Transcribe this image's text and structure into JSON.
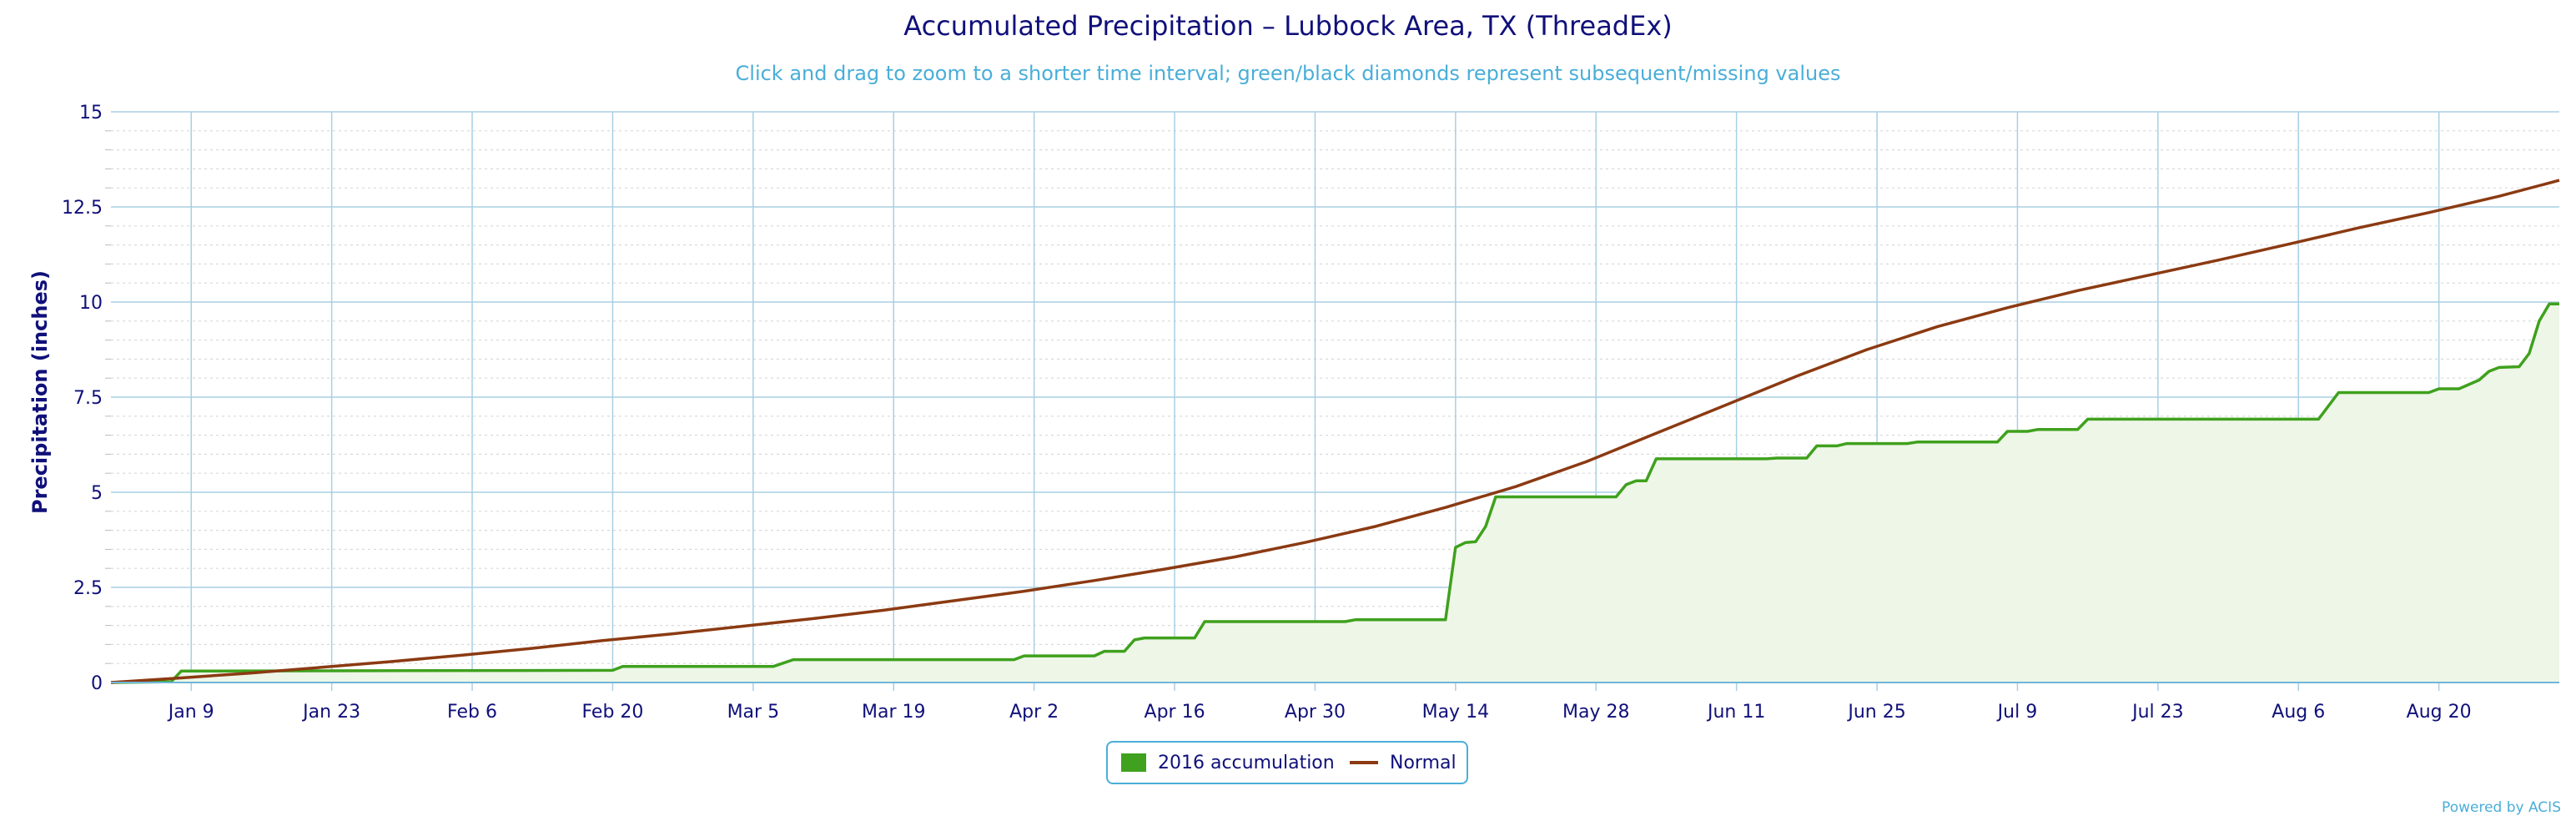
{
  "chart_data": {
    "type": "line",
    "title": "Accumulated Precipitation – Lubbock Area, TX (ThreadEx)",
    "subtitle": "Click and drag to zoom to a shorter time interval; green/black diamonds represent subsequent/missing values",
    "xlabel": "",
    "ylabel": "Precipitation (inches)",
    "xlim": [
      "2016-01-01",
      "2016-09-01"
    ],
    "ylim": [
      0,
      15
    ],
    "x_ticks": [
      {
        "date": "2016-01-09",
        "label": "Jan 9"
      },
      {
        "date": "2016-01-23",
        "label": "Jan 23"
      },
      {
        "date": "2016-02-06",
        "label": "Feb 6"
      },
      {
        "date": "2016-02-20",
        "label": "Feb 20"
      },
      {
        "date": "2016-03-05",
        "label": "Mar 5"
      },
      {
        "date": "2016-03-19",
        "label": "Mar 19"
      },
      {
        "date": "2016-04-02",
        "label": "Apr 2"
      },
      {
        "date": "2016-04-16",
        "label": "Apr 16"
      },
      {
        "date": "2016-04-30",
        "label": "Apr 30"
      },
      {
        "date": "2016-05-14",
        "label": "May 14"
      },
      {
        "date": "2016-05-28",
        "label": "May 28"
      },
      {
        "date": "2016-06-11",
        "label": "Jun 11"
      },
      {
        "date": "2016-06-25",
        "label": "Jun 25"
      },
      {
        "date": "2016-07-09",
        "label": "Jul 9"
      },
      {
        "date": "2016-07-23",
        "label": "Jul 23"
      },
      {
        "date": "2016-08-06",
        "label": "Aug 6"
      },
      {
        "date": "2016-08-20",
        "label": "Aug 20"
      }
    ],
    "y_ticks": [
      {
        "value": 0,
        "label": "0"
      },
      {
        "value": 2.5,
        "label": "2.5"
      },
      {
        "value": 5,
        "label": "5"
      },
      {
        "value": 7.5,
        "label": "7.5"
      },
      {
        "value": 10,
        "label": "10"
      },
      {
        "value": 12.5,
        "label": "12.5"
      },
      {
        "value": 15,
        "label": "15"
      }
    ],
    "grid": true,
    "legend_position": "bottom-center",
    "series": [
      {
        "name": "2016 accumulation",
        "style": "area",
        "color": "#3fa11d",
        "fill": "#eef6e8",
        "points": [
          [
            "2016-01-01",
            0.0
          ],
          [
            "2016-01-07",
            0.02
          ],
          [
            "2016-01-08",
            0.3
          ],
          [
            "2016-02-20",
            0.32
          ],
          [
            "2016-02-21",
            0.42
          ],
          [
            "2016-03-07",
            0.42
          ],
          [
            "2016-03-09",
            0.6
          ],
          [
            "2016-03-31",
            0.6
          ],
          [
            "2016-04-01",
            0.7
          ],
          [
            "2016-04-08",
            0.7
          ],
          [
            "2016-04-09",
            0.82
          ],
          [
            "2016-04-11",
            0.82
          ],
          [
            "2016-04-12",
            1.12
          ],
          [
            "2016-04-13",
            1.17
          ],
          [
            "2016-04-18",
            1.17
          ],
          [
            "2016-04-19",
            1.6
          ],
          [
            "2016-05-03",
            1.6
          ],
          [
            "2016-05-04",
            1.65
          ],
          [
            "2016-05-13",
            1.65
          ],
          [
            "2016-05-14",
            3.55
          ],
          [
            "2016-05-15",
            3.68
          ],
          [
            "2016-05-16",
            3.7
          ],
          [
            "2016-05-17",
            4.1
          ],
          [
            "2016-05-18",
            4.88
          ],
          [
            "2016-05-30",
            4.88
          ],
          [
            "2016-05-31",
            5.2
          ],
          [
            "2016-06-01",
            5.3
          ],
          [
            "2016-06-02",
            5.3
          ],
          [
            "2016-06-03",
            5.88
          ],
          [
            "2016-06-14",
            5.88
          ],
          [
            "2016-06-15",
            5.9
          ],
          [
            "2016-06-18",
            5.9
          ],
          [
            "2016-06-19",
            6.22
          ],
          [
            "2016-06-21",
            6.22
          ],
          [
            "2016-06-22",
            6.28
          ],
          [
            "2016-06-28",
            6.28
          ],
          [
            "2016-06-29",
            6.32
          ],
          [
            "2016-07-07",
            6.32
          ],
          [
            "2016-07-08",
            6.6
          ],
          [
            "2016-07-10",
            6.6
          ],
          [
            "2016-07-11",
            6.65
          ],
          [
            "2016-07-15",
            6.65
          ],
          [
            "2016-07-16",
            6.92
          ],
          [
            "2016-08-08",
            6.92
          ],
          [
            "2016-08-10",
            7.62
          ],
          [
            "2016-08-19",
            7.62
          ],
          [
            "2016-08-20",
            7.72
          ],
          [
            "2016-08-22",
            7.72
          ],
          [
            "2016-08-24",
            7.95
          ],
          [
            "2016-08-25",
            8.18
          ],
          [
            "2016-08-26",
            8.28
          ],
          [
            "2016-08-28",
            8.3
          ],
          [
            "2016-08-29",
            8.65
          ],
          [
            "2016-08-30",
            9.5
          ],
          [
            "2016-08-31",
            9.95
          ],
          [
            "2016-09-01",
            9.95
          ]
        ]
      },
      {
        "name": "Normal",
        "style": "line",
        "color": "#8b3a12",
        "points": [
          [
            "2016-01-01",
            0.0
          ],
          [
            "2016-01-08",
            0.12
          ],
          [
            "2016-01-15",
            0.25
          ],
          [
            "2016-01-22",
            0.4
          ],
          [
            "2016-01-29",
            0.55
          ],
          [
            "2016-02-05",
            0.72
          ],
          [
            "2016-02-12",
            0.9
          ],
          [
            "2016-02-19",
            1.1
          ],
          [
            "2016-02-26",
            1.28
          ],
          [
            "2016-03-04",
            1.48
          ],
          [
            "2016-03-11",
            1.68
          ],
          [
            "2016-03-18",
            1.9
          ],
          [
            "2016-03-25",
            2.15
          ],
          [
            "2016-04-01",
            2.4
          ],
          [
            "2016-04-08",
            2.68
          ],
          [
            "2016-04-15",
            2.98
          ],
          [
            "2016-04-22",
            3.3
          ],
          [
            "2016-04-29",
            3.68
          ],
          [
            "2016-05-06",
            4.1
          ],
          [
            "2016-05-13",
            4.6
          ],
          [
            "2016-05-20",
            5.15
          ],
          [
            "2016-05-27",
            5.8
          ],
          [
            "2016-06-03",
            6.55
          ],
          [
            "2016-06-10",
            7.3
          ],
          [
            "2016-06-17",
            8.05
          ],
          [
            "2016-06-24",
            8.75
          ],
          [
            "2016-07-01",
            9.35
          ],
          [
            "2016-07-08",
            9.85
          ],
          [
            "2016-07-15",
            10.3
          ],
          [
            "2016-07-22",
            10.7
          ],
          [
            "2016-07-29",
            11.1
          ],
          [
            "2016-08-05",
            11.52
          ],
          [
            "2016-08-12",
            11.95
          ],
          [
            "2016-08-19",
            12.35
          ],
          [
            "2016-08-26",
            12.78
          ],
          [
            "2016-09-01",
            13.2
          ]
        ]
      }
    ],
    "credit": "Powered by ACIS"
  }
}
